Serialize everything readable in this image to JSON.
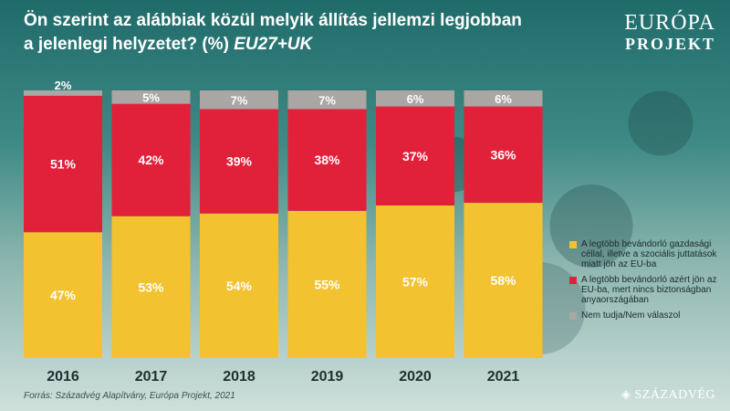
{
  "title": {
    "line1": "Ön szerint az alábbiak közül melyik állítás jellemzi legjobban",
    "line2": "a jelenlegi helyzetet? (%)",
    "line2_italic": "EU27+UK"
  },
  "logo": {
    "line1": "EURÓPA",
    "line2": "PROJEKT"
  },
  "source": "Forrás: Századvég Alapítvány, Európa Projekt, 2021",
  "brand": "SZÁZADVÉG",
  "colors": {
    "economic": "#f2c230",
    "safety": "#e1203a",
    "dontknow": "#a9a6a3"
  },
  "chart_data": {
    "type": "bar",
    "stacked": true,
    "categories": [
      "2016",
      "2017",
      "2018",
      "2019",
      "2020",
      "2021"
    ],
    "series": [
      {
        "name": "A legtöbb bevándorló gazdasági céllal, illetve a szociális juttatások miatt jön az EU-ba",
        "key": "economic",
        "values": [
          47,
          53,
          54,
          55,
          57,
          58
        ]
      },
      {
        "name": "A legtöbb bevándorló azért jön az EU-ba, mert nincs biztonságban anyaországában",
        "key": "safety",
        "values": [
          51,
          42,
          39,
          38,
          37,
          36
        ]
      },
      {
        "name": "Nem tudja/Nem válaszol",
        "key": "dontknow",
        "values": [
          2,
          5,
          7,
          7,
          6,
          6
        ]
      }
    ],
    "value_labels": [
      [
        "47%",
        "53%",
        "54%",
        "55%",
        "57%",
        "58%"
      ],
      [
        "51%",
        "42%",
        "39%",
        "38%",
        "37%",
        "36%"
      ],
      [
        "2%",
        "5%",
        "7%",
        "7%",
        "6%",
        "6%"
      ]
    ],
    "ylim": [
      0,
      100
    ],
    "legend_position": "right"
  }
}
